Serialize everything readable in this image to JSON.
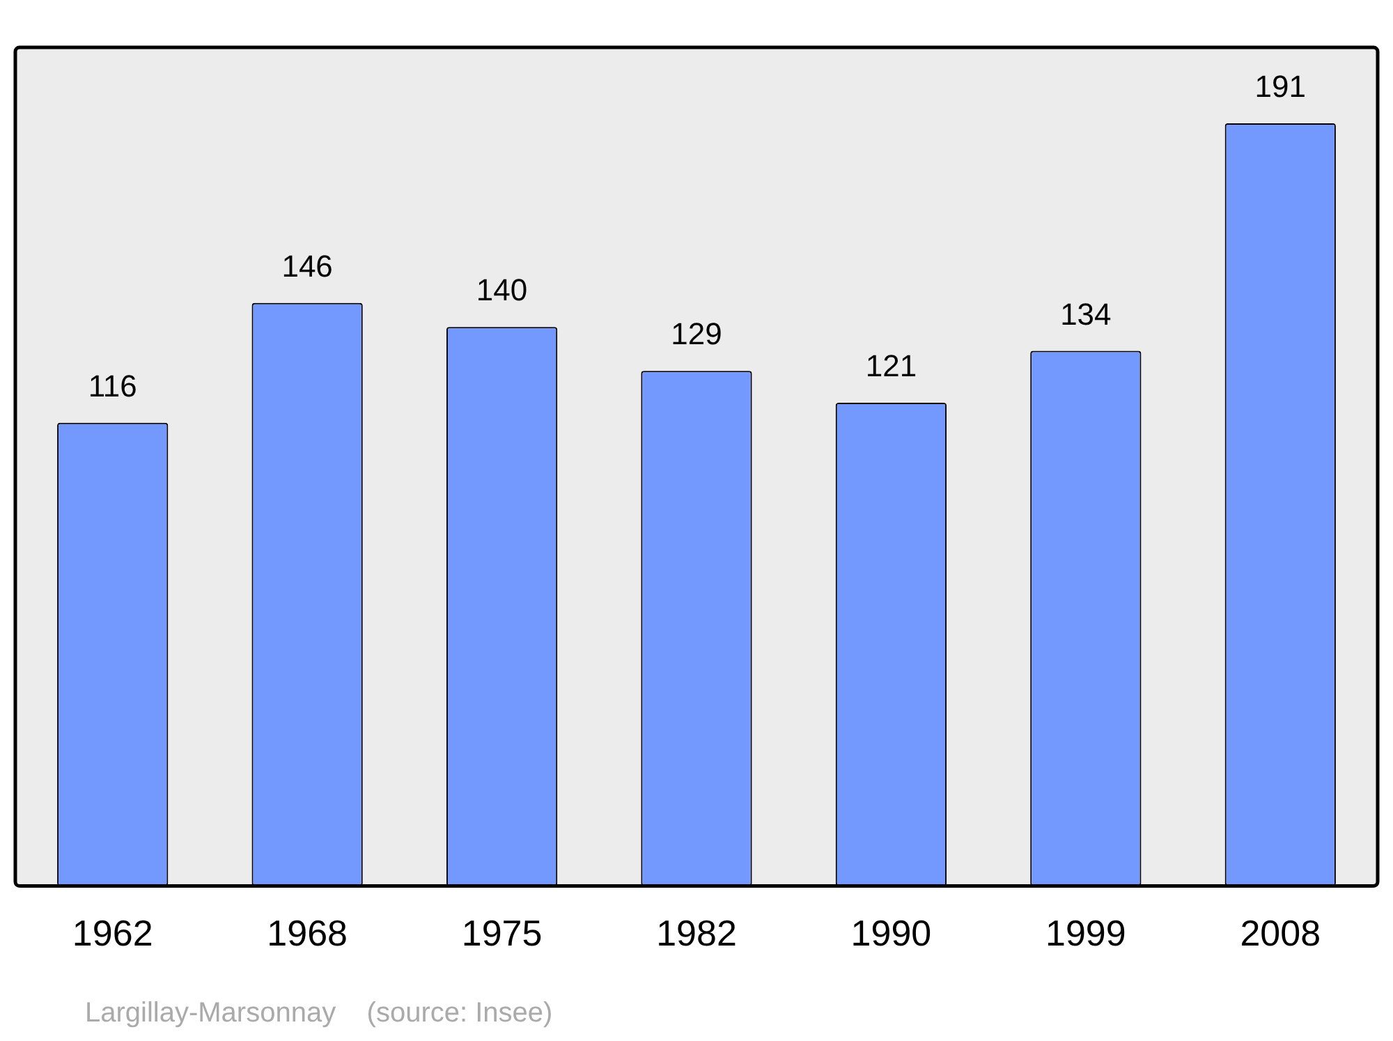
{
  "chart_data": {
    "type": "bar",
    "categories": [
      "1962",
      "1968",
      "1975",
      "1982",
      "1990",
      "1999",
      "2008"
    ],
    "values": [
      116,
      146,
      140,
      129,
      121,
      134,
      191
    ],
    "color": "#7399ff",
    "ylim": [
      0,
      210
    ],
    "data_labels": true,
    "grid": false,
    "legend": false,
    "annotations": [
      "Largillay-Marsonnay    (source: Insee)"
    ]
  }
}
